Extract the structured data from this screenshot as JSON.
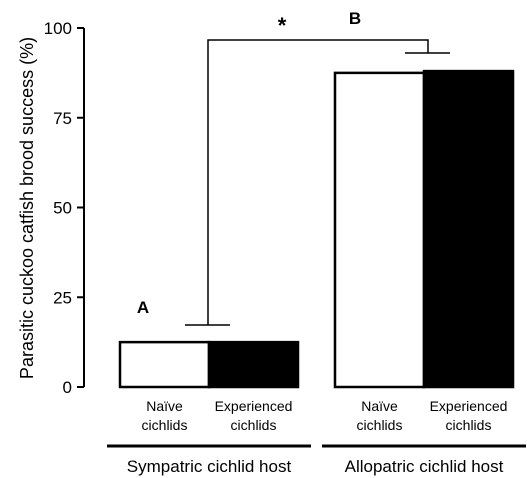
{
  "chart_data": {
    "type": "bar",
    "ylabel": "Parasitic cuckoo catfish brood success (%)",
    "ylim": [
      0,
      100
    ],
    "yticks": [
      0,
      25,
      50,
      75,
      100
    ],
    "groups": [
      {
        "label": "Sympatric cichlid host",
        "letter": "A",
        "bars": [
          {
            "label_line1": "Naïve",
            "label_line2": "cichlids",
            "value": 12.5,
            "fill": "#ffffff"
          },
          {
            "label_line1": "Experienced",
            "label_line2": "cichlids",
            "value": 12.5,
            "fill": "#000000"
          }
        ]
      },
      {
        "label": "Allopatric cichlid host",
        "letter": "B",
        "bars": [
          {
            "label_line1": "Naïve",
            "label_line2": "cichlids",
            "value": 87.5,
            "fill": "#ffffff"
          },
          {
            "label_line1": "Experienced",
            "label_line2": "cichlids",
            "value": 88,
            "fill": "#000000"
          }
        ]
      }
    ],
    "significance": "*",
    "colors": {
      "axis": "#000000",
      "naive": "#ffffff",
      "experienced": "#000000"
    }
  }
}
